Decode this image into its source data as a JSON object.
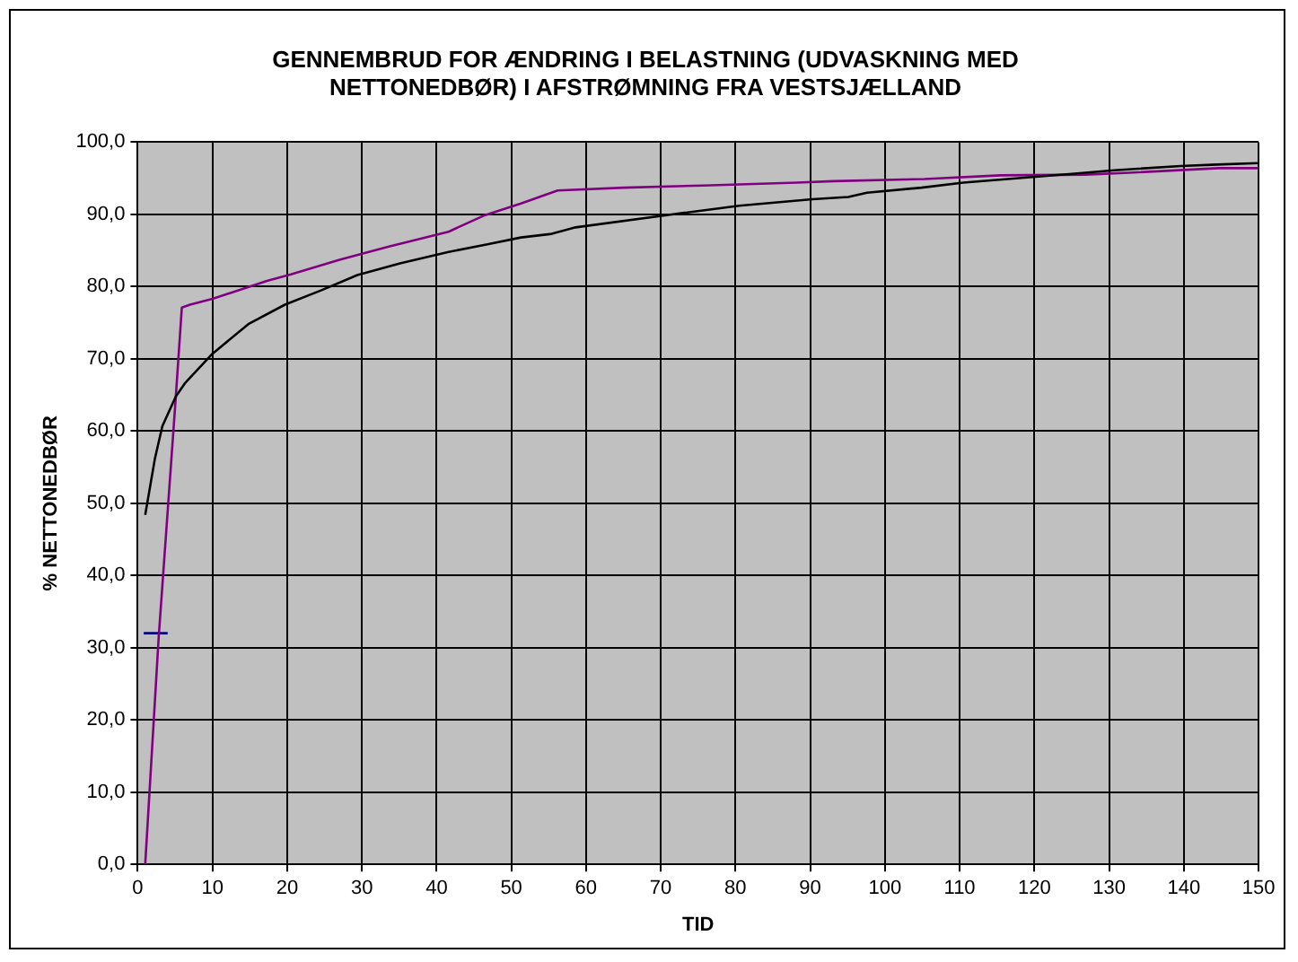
{
  "chart_data": {
    "type": "line",
    "title": "GENNEMBRUD FOR ÆNDRING I BELASTNING (UDVASKNING MED NETTONEDBØR) I AFSTRØMNING FRA VESTSJÆLLAND",
    "xlabel": "TID",
    "ylabel": "% NETTONEDBØR",
    "series": [
      {
        "color": "#000000",
        "x": [
          1,
          2.3,
          3.3,
          5.1,
          6.3,
          10,
          14.8,
          19.7,
          24.6,
          29.4,
          35.1,
          41.6,
          46.5,
          51.3,
          55.4,
          58.6,
          70.8,
          80.5,
          90.3,
          95.1,
          97.6,
          104.9,
          110.5,
          125,
          130.7,
          139.6,
          144.4,
          150
        ],
        "values": [
          48.4,
          56.2,
          60.7,
          64.8,
          66.6,
          70.7,
          74.8,
          77.5,
          79.5,
          81.6,
          83.2,
          84.8,
          85.8,
          86.8,
          87.3,
          88.2,
          89.9,
          91.2,
          92.1,
          92.4,
          93,
          93.7,
          94.4,
          95.6,
          96.1,
          96.7,
          96.9,
          97.1
        ]
      },
      {
        "color": "#800080",
        "x": [
          1,
          2.8,
          5.1,
          5.9,
          7,
          10,
          17.3,
          20.5,
          27,
          33.5,
          41.6,
          46.5,
          51.3,
          56.2,
          65.1,
          75.7,
          88.2,
          93.1,
          105.3,
          115.5,
          126.8,
          133.3,
          144.7,
          150
        ],
        "values": [
          0,
          31.4,
          64.8,
          77.1,
          77.5,
          78.3,
          80.8,
          81.7,
          83.7,
          85.5,
          87.6,
          89.9,
          91.5,
          93.3,
          93.7,
          94,
          94.4,
          94.6,
          94.9,
          95.4,
          95.5,
          95.8,
          96.4,
          96.4
        ]
      },
      {
        "color": "#000080",
        "x": [
          0.8,
          4
        ],
        "values": [
          32,
          32
        ]
      }
    ],
    "xlim": [
      0,
      150
    ],
    "xticks": [
      0,
      10,
      20,
      30,
      40,
      50,
      60,
      70,
      80,
      90,
      100,
      110,
      120,
      130,
      140,
      150
    ],
    "ylim": [
      0,
      100
    ],
    "yticks": [
      {
        "value": 0,
        "label": "0,0"
      },
      {
        "value": 10,
        "label": "10,0"
      },
      {
        "value": 20,
        "label": "20,0"
      },
      {
        "value": 30,
        "label": "30,0"
      },
      {
        "value": 40,
        "label": "40,0"
      },
      {
        "value": 50,
        "label": "50,0"
      },
      {
        "value": 60,
        "label": "60,0"
      },
      {
        "value": 70,
        "label": "70,0"
      },
      {
        "value": 80,
        "label": "80,0"
      },
      {
        "value": 90,
        "label": "90,0"
      },
      {
        "value": 100,
        "label": "100,0"
      }
    ],
    "grid": true,
    "legend": false,
    "marker": "none",
    "line_style": "solid"
  }
}
